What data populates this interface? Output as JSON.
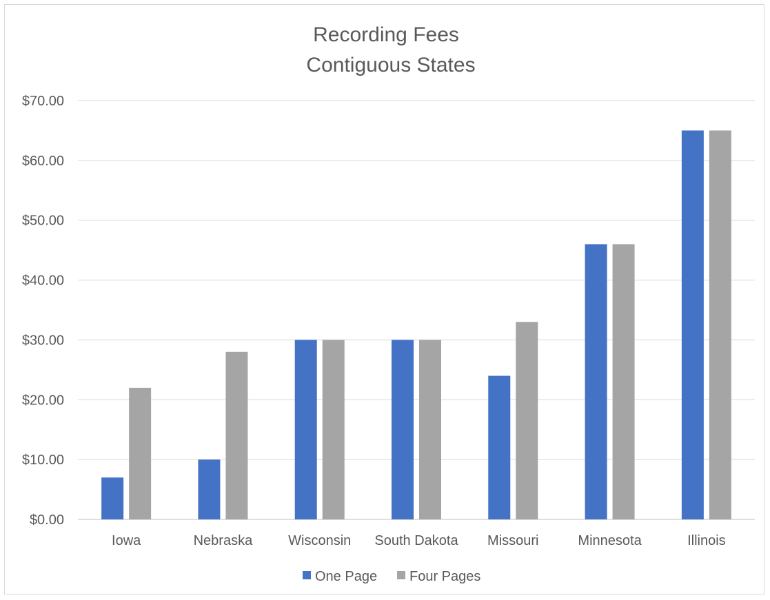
{
  "chart_data": {
    "type": "bar",
    "title": "Recording Fees",
    "subtitle": "Contiguous States",
    "categories": [
      "Iowa",
      "Nebraska",
      "Wisconsin",
      "South Dakota",
      "Missouri",
      "Minnesota",
      "Illinois"
    ],
    "series": [
      {
        "name": "One Page",
        "values": [
          7,
          10,
          30,
          30,
          24,
          46,
          65
        ],
        "color": "#4472c4"
      },
      {
        "name": "Four Pages",
        "values": [
          22,
          28,
          30,
          30,
          33,
          46,
          65
        ],
        "color": "#a5a5a5"
      }
    ],
    "ylim": [
      0,
      70
    ],
    "yticks": [
      "$0.00",
      "$10.00",
      "$20.00",
      "$30.00",
      "$40.00",
      "$50.00",
      "$60.00",
      "$70.00"
    ],
    "grid": true,
    "legend_position": "bottom"
  }
}
